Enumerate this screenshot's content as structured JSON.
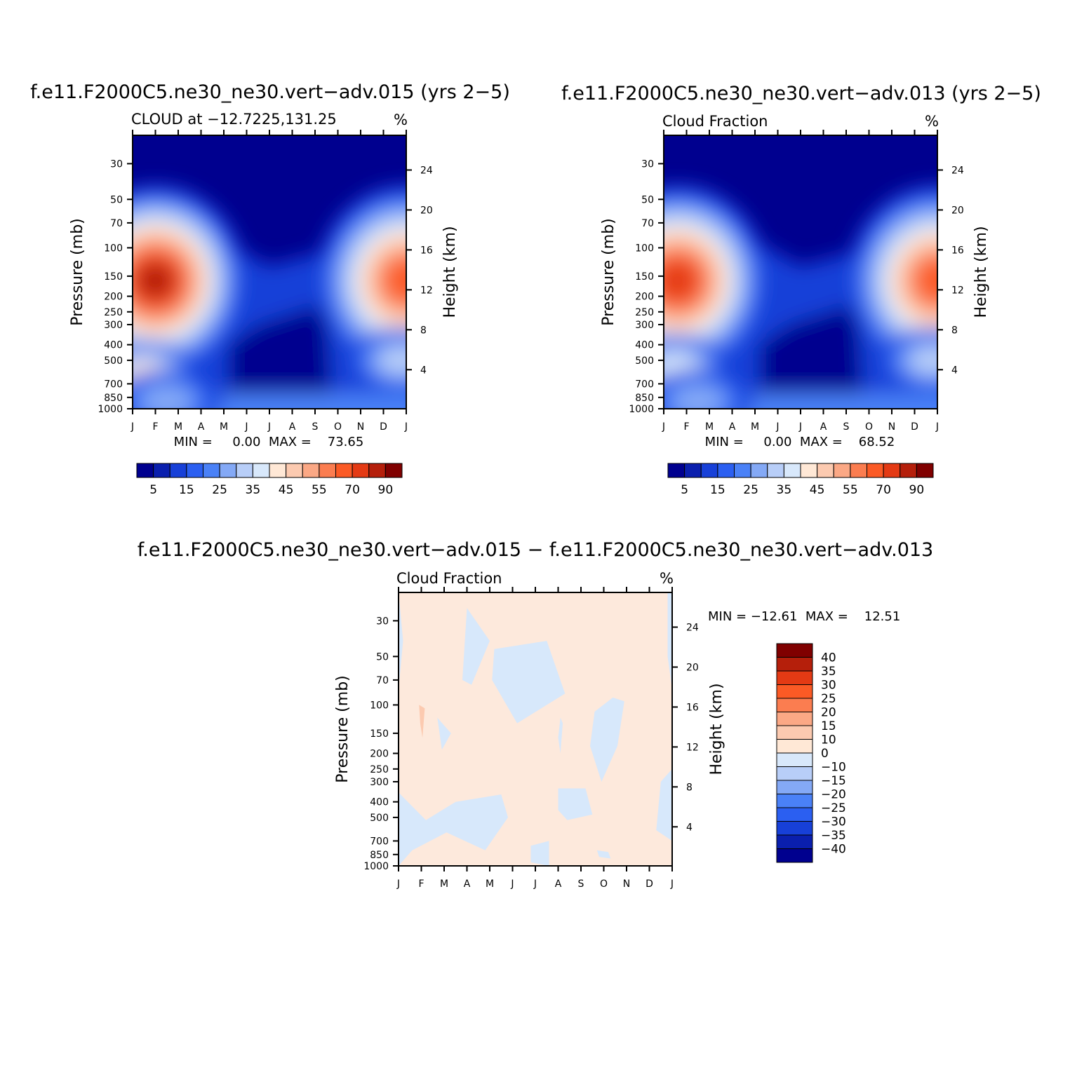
{
  "chart_data": [
    {
      "type": "heatmap",
      "title": "f.e11.F2000C5.ne30_ne30.vert−adv.015 (yrs 2−5)",
      "subtitle": "CLOUD at −12.7225,131.25",
      "units": "%",
      "xlabel": "",
      "ylabel": "Pressure (mb)",
      "ylabel_right": "Height (km)",
      "x_ticks": [
        "J",
        "F",
        "M",
        "A",
        "M",
        "J",
        "J",
        "A",
        "S",
        "O",
        "N",
        "D",
        "J"
      ],
      "y_ticks": [
        "30",
        "50",
        "70",
        "100",
        "150",
        "200",
        "250",
        "300",
        "400",
        "500",
        "700",
        "850",
        "1000"
      ],
      "y_ticks_right": [
        "24",
        "20",
        "16",
        "12",
        "8",
        "4"
      ],
      "stats": "MIN =     0.00  MAX =    73.65",
      "colorbar_labels": [
        "5",
        "15",
        "25",
        "35",
        "45",
        "55",
        "70",
        "90"
      ],
      "blobs": [
        {
          "x": 1,
          "p": 160,
          "value": 68
        },
        {
          "x": 12,
          "p": 160,
          "value": 62
        },
        {
          "x": 0.5,
          "p": 600,
          "value": 38
        },
        {
          "x": 11.8,
          "p": 500,
          "value": 32
        },
        {
          "x": 1.5,
          "p": 900,
          "value": 24
        }
      ]
    },
    {
      "type": "heatmap",
      "title": "f.e11.F2000C5.ne30_ne30.vert−adv.013 (yrs 2−5)",
      "subtitle": "Cloud Fraction",
      "units": "%",
      "xlabel": "",
      "ylabel": "Pressure (mb)",
      "ylabel_right": "Height (km)",
      "x_ticks": [
        "J",
        "F",
        "M",
        "A",
        "M",
        "J",
        "J",
        "A",
        "S",
        "O",
        "N",
        "D",
        "J"
      ],
      "y_ticks": [
        "30",
        "50",
        "70",
        "100",
        "150",
        "200",
        "250",
        "300",
        "400",
        "500",
        "700",
        "850",
        "1000"
      ],
      "y_ticks_right": [
        "24",
        "20",
        "16",
        "12",
        "8",
        "4"
      ],
      "stats": "MIN =     0.00  MAX =    68.52",
      "colorbar_labels": [
        "5",
        "15",
        "25",
        "35",
        "45",
        "55",
        "70",
        "90"
      ],
      "blobs": [
        {
          "x": 0.6,
          "p": 160,
          "value": 64
        },
        {
          "x": 12,
          "p": 160,
          "value": 60
        },
        {
          "x": 0.5,
          "p": 550,
          "value": 36
        },
        {
          "x": 11.8,
          "p": 500,
          "value": 32
        },
        {
          "x": 1.5,
          "p": 900,
          "value": 24
        }
      ]
    },
    {
      "type": "heatmap",
      "title": "f.e11.F2000C5.ne30_ne30.vert−adv.015 − f.e11.F2000C5.ne30_ne30.vert−adv.013",
      "subtitle": "Cloud Fraction",
      "units": "%",
      "xlabel": "",
      "ylabel": "Pressure (mb)",
      "ylabel_right": "Height (km)",
      "x_ticks": [
        "J",
        "F",
        "M",
        "A",
        "M",
        "J",
        "J",
        "A",
        "S",
        "O",
        "N",
        "D",
        "J"
      ],
      "y_ticks": [
        "30",
        "50",
        "70",
        "100",
        "150",
        "200",
        "250",
        "300",
        "400",
        "500",
        "700",
        "850",
        "1000"
      ],
      "y_ticks_right": [
        "24",
        "20",
        "16",
        "12",
        "8",
        "4"
      ],
      "stats": "MIN = −12.61  MAX =    12.51",
      "colorbar_labels": [
        "40",
        "35",
        "30",
        "25",
        "20",
        "15",
        "10",
        "0",
        "−10",
        "−15",
        "−20",
        "−25",
        "−30",
        "−35",
        "−40"
      ]
    }
  ],
  "colors": {
    "levels": [
      "#00008f",
      "#0a1fae",
      "#1740d8",
      "#2b5ff1",
      "#4a81f7",
      "#84a9f6",
      "#b8cef8",
      "#d8e8fb",
      "#ffe8d6",
      "#fccab0",
      "#fba885",
      "#fb7d50",
      "#fb5a25",
      "#e43a14",
      "#b51f0b",
      "#800000"
    ],
    "diff_zero_pos": "#fde9dc",
    "diff_zero_neg": "#d7e8fb",
    "diff_pos_small": "#fccab0"
  }
}
